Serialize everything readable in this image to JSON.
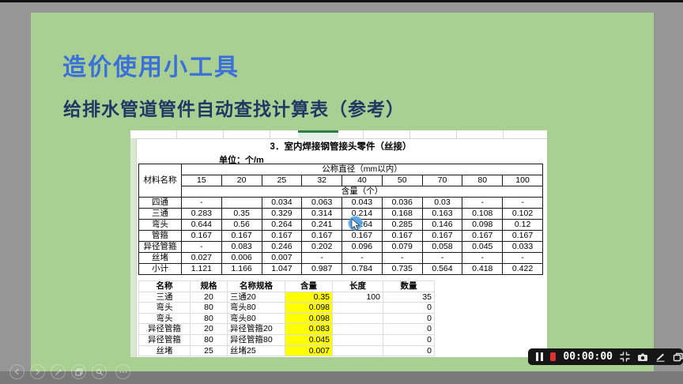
{
  "slide": {
    "title": "造价使用小工具",
    "subtitle": "给排水管道管件自动查找计算表（参考）"
  },
  "spreadsheet": {
    "table1": {
      "caption": "3．室内焊接钢管接头零件（丝接）",
      "unit_label": "单位：个/m",
      "corner_header": "材料名称",
      "diameter_header": "公称直径（mm以内）",
      "content_header": "含量（个）",
      "diameters": [
        "15",
        "20",
        "25",
        "32",
        "40",
        "50",
        "70",
        "80",
        "100"
      ],
      "rows": [
        {
          "name": "四通",
          "values": [
            "-",
            "",
            "0.034",
            "0.063",
            "0.043",
            "0.036",
            "0.03",
            "-",
            "-"
          ]
        },
        {
          "name": "三通",
          "values": [
            "0.283",
            "0.35",
            "0.329",
            "0.314",
            "0.214",
            "0.168",
            "0.163",
            "0.108",
            "0.102"
          ]
        },
        {
          "name": "弯头",
          "values": [
            "0.644",
            "0.56",
            "0.264",
            "0.241",
            "0.264",
            "0.285",
            "0.146",
            "0.098",
            "0.12"
          ]
        },
        {
          "name": "管箍",
          "values": [
            "0.167",
            "0.167",
            "0.167",
            "0.167",
            "0.167",
            "0.167",
            "0.167",
            "0.167",
            "0.167"
          ]
        },
        {
          "name": "异径管箍",
          "values": [
            "-",
            "0.083",
            "0.246",
            "0.202",
            "0.096",
            "0.079",
            "0.058",
            "0.045",
            "0.033"
          ]
        },
        {
          "name": "丝堵",
          "values": [
            "0.027",
            "0.006",
            "0.007",
            "-",
            "-",
            "-",
            "-",
            "-",
            "-"
          ]
        },
        {
          "name": "小计",
          "values": [
            "1.121",
            "1.166",
            "1.047",
            "0.987",
            "0.784",
            "0.735",
            "0.564",
            "0.418",
            "0.422"
          ]
        }
      ]
    },
    "table2": {
      "headers": [
        "名称",
        "规格",
        "名称规格",
        "含量",
        "长度",
        "数量"
      ],
      "col_align": [
        "ac",
        "ac",
        "al",
        "ar",
        "ar",
        "ar"
      ],
      "highlight_col": 3,
      "rows": [
        [
          "三通",
          "20",
          "三通20",
          "0.35",
          "100",
          "35"
        ],
        [
          "弯头",
          "80",
          "弯头80",
          "0.098",
          "",
          "0"
        ],
        [
          "弯头",
          "80",
          "弯头80",
          "0.098",
          "",
          "0"
        ],
        [
          "异径管箍",
          "20",
          "异径管箍20",
          "0.083",
          "",
          "0"
        ],
        [
          "异径管箍",
          "80",
          "异径管箍80",
          "0.045",
          "",
          "0"
        ],
        [
          "丝堵",
          "25",
          "丝堵25",
          "0.007",
          "",
          "0"
        ]
      ]
    }
  },
  "presenter_controls": {
    "items": [
      {
        "name": "previous-slide",
        "icon": "chevron-left-icon"
      },
      {
        "name": "next-slide",
        "icon": "chevron-right-icon"
      },
      {
        "name": "pen-tool",
        "icon": "pen-icon"
      },
      {
        "name": "see-all-slides",
        "icon": "frames-icon"
      },
      {
        "name": "zoom-slide",
        "icon": "magnifier-icon"
      },
      {
        "name": "more-options",
        "icon": "ellipsis-icon"
      }
    ]
  },
  "recorder": {
    "time": "00:00:00",
    "buttons": [
      "pause",
      "stop",
      "collapse",
      "camera",
      "pen",
      "window"
    ]
  },
  "colors": {
    "slide_bg": "#a9cf92",
    "frame_gray": "#969696",
    "bottom_bar_gray": "#7a7a7a",
    "title_blue": "#3a70d8",
    "subtitle_navy": "#1f3864",
    "highlight_yellow": "#ffff00",
    "record_red": "#e03131",
    "selection_green": "#2e7d4f",
    "cursor_halo_blue": "#58a6e8"
  }
}
